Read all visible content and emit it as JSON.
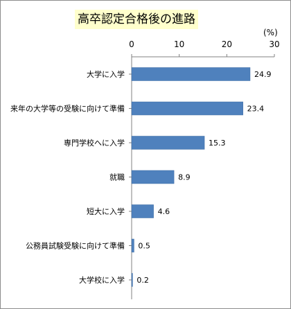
{
  "chart_data": {
    "type": "bar",
    "orientation": "horizontal",
    "title": "高卒認定合格後の進路",
    "unit": "(%)",
    "categories": [
      "大学に入学",
      "来年の大学等の受験に向けて準備",
      "専門学校へに入学",
      "就職",
      "短大に入学",
      "公務員試験受験に向けて準備",
      "大学校に入学"
    ],
    "values": [
      24.9,
      23.4,
      15.3,
      8.9,
      4.6,
      0.5,
      0.2
    ],
    "value_labels": [
      "24.9",
      "23.4",
      "15.3",
      "8.9",
      "4.6",
      "0.5",
      "0.2"
    ],
    "xlim": [
      0,
      30
    ],
    "ticks": [
      0,
      10,
      20,
      30
    ],
    "tick_labels": [
      "0",
      "10",
      "20",
      "30"
    ],
    "axis_position": "top",
    "grid": false,
    "legend": "none",
    "colors": {
      "bar": "#4f81bd",
      "bar_edge": "#3a6aa3",
      "title_bg": "#ffffcc",
      "axis": "#808080"
    }
  }
}
